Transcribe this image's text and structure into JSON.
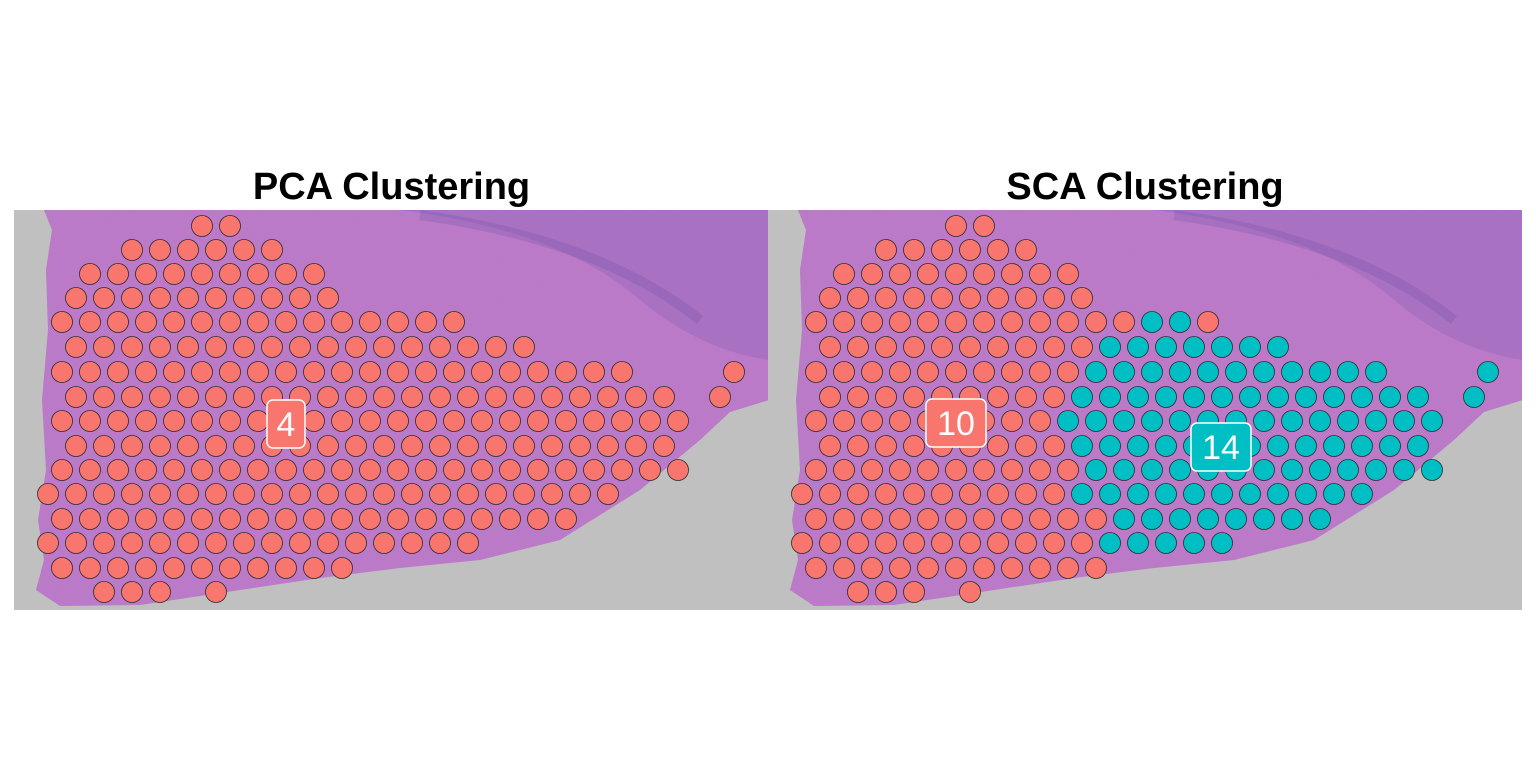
{
  "chart_data": [
    {
      "type": "scatter",
      "title": "PCA Clustering",
      "clusters": [
        {
          "label": "4",
          "color": "#F8766D"
        }
      ],
      "spot_counts": {
        "4": 278
      }
    },
    {
      "type": "scatter",
      "title": "SCA Clustering",
      "clusters": [
        {
          "label": "10",
          "color": "#F8766D"
        },
        {
          "label": "14",
          "color": "#00BFC4"
        }
      ],
      "spot_counts": {
        "10": 170,
        "14": 108
      }
    }
  ],
  "colors": {
    "slide_background": "#bfc0bf",
    "tissue": "#c27ac9",
    "tissue_dark": "#8a62b6"
  }
}
